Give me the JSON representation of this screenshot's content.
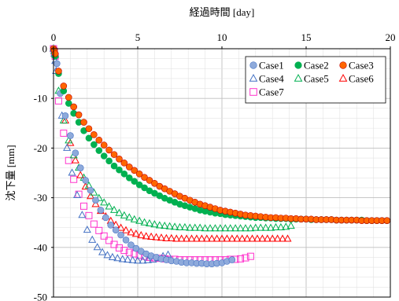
{
  "chart_data": {
    "type": "scatter",
    "xlabel": "経過時間 [day]",
    "ylabel": "沈下量 [mm]",
    "xlim": [
      0,
      20
    ],
    "ylim": [
      -50,
      0
    ],
    "x_ticks": [
      0,
      5,
      10,
      15,
      20
    ],
    "y_ticks": [
      0,
      -10,
      -20,
      -30,
      -40,
      -50
    ],
    "x_axis_position": "top",
    "grid": true,
    "legend_position": "top-right",
    "series": [
      {
        "name": "Case1",
        "marker": "circle",
        "color": "#8eaadb",
        "stroke": "#4472c4",
        "x": [
          0,
          0.05,
          0.1,
          0.2,
          0.4,
          0.7,
          1.0,
          1.3,
          1.6,
          1.9,
          2.2,
          2.5,
          2.8,
          3.1,
          3.4,
          3.7,
          4.0,
          4.3,
          4.6,
          4.9,
          5.2,
          5.5,
          5.8,
          6.1,
          6.4,
          6.7,
          7.0,
          7.3,
          7.6,
          7.9,
          8.2,
          8.5,
          8.8,
          9.1,
          9.4,
          9.7,
          10.0,
          10.3,
          10.6
        ],
        "y": [
          0,
          -0.5,
          -1.5,
          -3,
          -9,
          -13.5,
          -17.5,
          -21,
          -24,
          -26.5,
          -28.5,
          -30.5,
          -32.5,
          -34,
          -35.5,
          -36.5,
          -37.5,
          -38.5,
          -39.5,
          -40.2,
          -40.8,
          -41.3,
          -41.7,
          -42,
          -42.3,
          -42.5,
          -42.7,
          -42.8,
          -43,
          -43.1,
          -43.1,
          -43.2,
          -43.2,
          -43.3,
          -43.3,
          -43.2,
          -43.1,
          -42.8,
          -42.5
        ]
      },
      {
        "name": "Case2",
        "marker": "circle",
        "color": "#00b050",
        "stroke": "#00b050",
        "x": [
          0,
          0.05,
          0.1,
          0.3,
          0.6,
          0.9,
          1.2,
          1.5,
          1.8,
          2.1,
          2.4,
          2.7,
          3.0,
          3.3,
          3.6,
          3.9,
          4.2,
          4.5,
          4.8,
          5.1,
          5.4,
          5.7,
          6.0,
          6.3,
          6.6,
          6.9,
          7.2,
          7.5,
          7.8,
          8.1,
          8.4,
          8.7,
          9.0,
          9.3,
          9.6,
          9.9,
          10.2,
          10.5,
          10.8,
          11.1,
          11.4,
          11.7,
          12.0,
          12.3,
          12.6,
          12.9,
          13.2,
          13.5,
          13.8,
          14.1,
          14.4,
          14.7,
          15.0,
          15.3,
          15.6,
          15.9,
          16.2,
          16.5,
          16.8,
          17.1,
          17.4,
          17.7,
          18.0,
          18.3,
          18.6,
          18.9,
          19.2,
          19.5,
          19.8
        ],
        "y": [
          0,
          -0.5,
          -1.5,
          -5,
          -8.5,
          -11,
          -13,
          -14.8,
          -16.5,
          -18,
          -19.3,
          -20.5,
          -21.6,
          -22.6,
          -23.6,
          -24.4,
          -25.2,
          -26,
          -26.7,
          -27.4,
          -28,
          -28.6,
          -29.1,
          -29.6,
          -30.1,
          -30.5,
          -30.9,
          -31.3,
          -31.6,
          -31.9,
          -32.2,
          -32.5,
          -32.7,
          -32.9,
          -33.1,
          -33.2,
          -33.4,
          -33.5,
          -33.6,
          -33.7,
          -33.8,
          -33.9,
          -34,
          -34,
          -34.1,
          -34.1,
          -34.2,
          -34.2,
          -34.2,
          -34.3,
          -34.3,
          -34.3,
          -34.3,
          -34.4,
          -34.4,
          -34.4,
          -34.4,
          -34.4,
          -34.5,
          -34.5,
          -34.5,
          -34.5,
          -34.5,
          -34.5,
          -34.6,
          -34.6,
          -34.6,
          -34.6,
          -34.6
        ]
      },
      {
        "name": "Case3",
        "marker": "circle",
        "color": "#ff6600",
        "stroke": "#c00000",
        "x": [
          0,
          0.05,
          0.1,
          0.3,
          0.6,
          0.9,
          1.2,
          1.5,
          1.8,
          2.1,
          2.4,
          2.7,
          3.0,
          3.3,
          3.6,
          3.9,
          4.2,
          4.5,
          4.8,
          5.1,
          5.4,
          5.7,
          6.0,
          6.3,
          6.6,
          6.9,
          7.2,
          7.5,
          7.8,
          8.1,
          8.4,
          8.7,
          9.0,
          9.3,
          9.6,
          9.9,
          10.2,
          10.5,
          10.8,
          11.1,
          11.4,
          11.7,
          12.0,
          12.3,
          12.6,
          12.9,
          13.2,
          13.5,
          13.8,
          14.1,
          14.4,
          14.7,
          15.0,
          15.3,
          15.6,
          15.9,
          16.2,
          16.5,
          16.8,
          17.1,
          17.4,
          17.7,
          18.0,
          18.3,
          18.6,
          18.9,
          19.2,
          19.5,
          19.8
        ],
        "y": [
          0,
          -0.3,
          -1,
          -4.5,
          -7.5,
          -9.8,
          -11.7,
          -13.3,
          -14.8,
          -16.1,
          -17.3,
          -18.4,
          -19.4,
          -20.4,
          -21.3,
          -22.2,
          -23,
          -23.8,
          -24.5,
          -25.2,
          -25.9,
          -26.5,
          -27.1,
          -27.7,
          -28.2,
          -28.7,
          -29.2,
          -29.7,
          -30.1,
          -30.5,
          -30.9,
          -31.3,
          -31.6,
          -31.9,
          -32.2,
          -32.5,
          -32.7,
          -32.9,
          -33.1,
          -33.3,
          -33.5,
          -33.6,
          -33.7,
          -33.8,
          -33.9,
          -34,
          -34,
          -34.1,
          -34.1,
          -34.2,
          -34.2,
          -34.3,
          -34.3,
          -34.3,
          -34.4,
          -34.4,
          -34.4,
          -34.4,
          -34.5,
          -34.5,
          -34.5,
          -34.5,
          -34.5,
          -34.6,
          -34.6,
          -34.6,
          -34.6,
          -34.6,
          -34.6
        ]
      },
      {
        "name": "Case4",
        "marker": "triangle",
        "color": "none",
        "stroke": "#4472c4",
        "x": [
          0,
          0.05,
          0.1,
          0.15,
          0.5,
          0.8,
          1.1,
          1.4,
          1.7,
          2.0,
          2.3,
          2.6,
          2.9,
          3.2,
          3.5,
          3.8,
          4.1,
          4.4,
          4.7,
          5.0,
          5.3,
          5.6,
          5.9,
          6.2,
          6.5,
          6.8
        ],
        "y": [
          0,
          -1,
          -2.5,
          -4.5,
          -13.5,
          -20,
          -25,
          -29.5,
          -33.5,
          -36.5,
          -38.5,
          -40,
          -41,
          -41.6,
          -42,
          -42.2,
          -42.4,
          -42.5,
          -42.6,
          -42.7,
          -42.7,
          -42.6,
          -42.5,
          -42.2,
          -41.8,
          -41.5
        ]
      },
      {
        "name": "Case5",
        "marker": "triangle",
        "color": "none",
        "stroke": "#00b050",
        "x": [
          0,
          0.05,
          0.1,
          0.3,
          0.6,
          0.9,
          1.2,
          1.5,
          1.8,
          2.1,
          2.4,
          2.7,
          3.0,
          3.3,
          3.6,
          3.9,
          4.2,
          4.5,
          4.8,
          5.1,
          5.4,
          5.7,
          6.0,
          6.3,
          6.6,
          6.9,
          7.2,
          7.5,
          7.8,
          8.1,
          8.4,
          8.7,
          9.0,
          9.3,
          9.6,
          9.9,
          10.2,
          10.5,
          10.8,
          11.1,
          11.4,
          11.7,
          12.0,
          12.3,
          12.6,
          12.9,
          13.2,
          13.5,
          13.8,
          14.1
        ],
        "y": [
          0,
          -0.5,
          -1.2,
          -8.5,
          -14.5,
          -18.5,
          -21.5,
          -24,
          -26,
          -27.6,
          -29,
          -30.1,
          -31,
          -31.8,
          -32.5,
          -33.1,
          -33.6,
          -34,
          -34.4,
          -34.7,
          -35,
          -35.2,
          -35.4,
          -35.6,
          -35.7,
          -35.8,
          -35.9,
          -36,
          -36,
          -36.1,
          -36.1,
          -36.1,
          -36.2,
          -36.2,
          -36.2,
          -36.2,
          -36.2,
          -36.2,
          -36.2,
          -36.2,
          -36.2,
          -36.2,
          -36.1,
          -36.1,
          -36.1,
          -36.1,
          -36,
          -36,
          -35.9,
          -35.7
        ]
      },
      {
        "name": "Case6",
        "marker": "triangle",
        "color": "none",
        "stroke": "#ff0000",
        "x": [
          0,
          0.05,
          0.1,
          0.7,
          1.0,
          1.3,
          1.6,
          1.9,
          2.2,
          2.5,
          2.8,
          3.1,
          3.4,
          3.7,
          4.0,
          4.3,
          4.6,
          4.9,
          5.2,
          5.5,
          5.8,
          6.1,
          6.4,
          6.7,
          7.0,
          7.3,
          7.6,
          7.9,
          8.2,
          8.5,
          8.8,
          9.1,
          9.4,
          9.7,
          10.0,
          10.3,
          10.6,
          10.9,
          11.2,
          11.5,
          11.8,
          12.1,
          12.4,
          12.7,
          13.0,
          13.3,
          13.6,
          13.9
        ],
        "y": [
          0,
          -0.5,
          -1.2,
          -14.5,
          -19,
          -22.5,
          -25.5,
          -27.8,
          -29.7,
          -31.3,
          -32.7,
          -33.8,
          -34.7,
          -35.5,
          -36.1,
          -36.6,
          -37,
          -37.3,
          -37.6,
          -37.8,
          -37.9,
          -38,
          -38.1,
          -38.2,
          -38.2,
          -38.3,
          -38.3,
          -38.3,
          -38.3,
          -38.3,
          -38.3,
          -38.3,
          -38.3,
          -38.3,
          -38.3,
          -38.3,
          -38.3,
          -38.3,
          -38.3,
          -38.3,
          -38.3,
          -38.3,
          -38.3,
          -38.3,
          -38.3,
          -38.3,
          -38.3,
          -38.3
        ]
      },
      {
        "name": "Case7",
        "marker": "square",
        "color": "none",
        "stroke": "#ff33cc",
        "x": [
          0,
          0.05,
          0.1,
          0.3,
          0.6,
          0.9,
          1.2,
          1.5,
          1.8,
          2.1,
          2.4,
          2.7,
          3.0,
          3.3,
          3.6,
          3.9,
          4.2,
          4.5,
          4.8,
          5.1,
          5.4,
          5.7,
          6.0,
          6.3,
          6.6,
          6.9,
          7.2,
          7.5,
          7.8,
          8.1,
          8.4,
          8.7,
          9.0,
          9.3,
          9.6,
          9.9,
          10.2,
          10.5,
          10.8,
          11.1,
          11.4,
          11.7
        ],
        "y": [
          0,
          -0.5,
          -1.5,
          -10.5,
          -17,
          -22.5,
          -26.3,
          -29.3,
          -31.7,
          -33.6,
          -35.3,
          -36.6,
          -37.7,
          -38.6,
          -39.4,
          -40.1,
          -40.6,
          -41,
          -41.3,
          -41.6,
          -41.8,
          -42,
          -42.1,
          -42.2,
          -42.3,
          -42.4,
          -42.4,
          -42.5,
          -42.5,
          -42.5,
          -42.5,
          -42.5,
          -42.5,
          -42.5,
          -42.5,
          -42.5,
          -42.5,
          -42.4,
          -42.4,
          -42.3,
          -42.1,
          -41.8
        ]
      }
    ]
  }
}
